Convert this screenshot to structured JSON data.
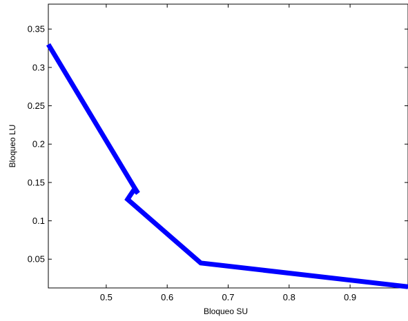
{
  "chart_data": {
    "type": "line",
    "title": "",
    "xlabel": "Bloqueo SU",
    "ylabel": "Bloqueo LU",
    "xlim": [
      0.405,
      0.995
    ],
    "ylim": [
      0.0125,
      0.3825
    ],
    "x_ticks": [
      0.5,
      0.6,
      0.7,
      0.8,
      0.9
    ],
    "x_tick_labels": [
      "0.5",
      "0.6",
      "0.7",
      "0.8",
      "0.9"
    ],
    "y_ticks": [
      0.05,
      0.1,
      0.15,
      0.2,
      0.25,
      0.3,
      0.35
    ],
    "y_tick_labels": [
      "0.05",
      "0.1",
      "0.15",
      "0.2",
      "0.25",
      "0.3",
      "0.35"
    ],
    "grid": false,
    "legend": "none",
    "series": [
      {
        "color": "#0000ff",
        "x": [
          0.405,
          0.545,
          0.552,
          0.546,
          0.54,
          0.535,
          0.655,
          0.995
        ],
        "y": [
          0.33,
          0.145,
          0.136,
          0.141,
          0.134,
          0.128,
          0.045,
          0.014
        ]
      }
    ]
  }
}
